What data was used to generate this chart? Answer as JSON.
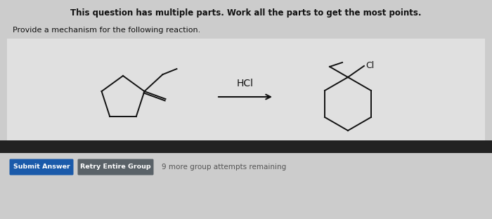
{
  "title_bold": "This question has multiple parts. Work all the parts to get the most points.",
  "subtitle": "Provide a mechanism for the following reaction.",
  "reagent": "HCl",
  "button1_text": "Submit Answer",
  "button1_color": "#1a5aaa",
  "button2_text": "Retry Entire Group",
  "button2_color": "#5a6268",
  "footer_text": "9 more group attempts remaining",
  "footer_color": "#555555",
  "bg_color": "#cccccc",
  "white_box_color": "#e0e0e0",
  "dark_bar_color": "#222222",
  "text_color": "#111111",
  "molecule_color": "#111111",
  "figw": 7.0,
  "figh": 3.12,
  "dpi": 100
}
